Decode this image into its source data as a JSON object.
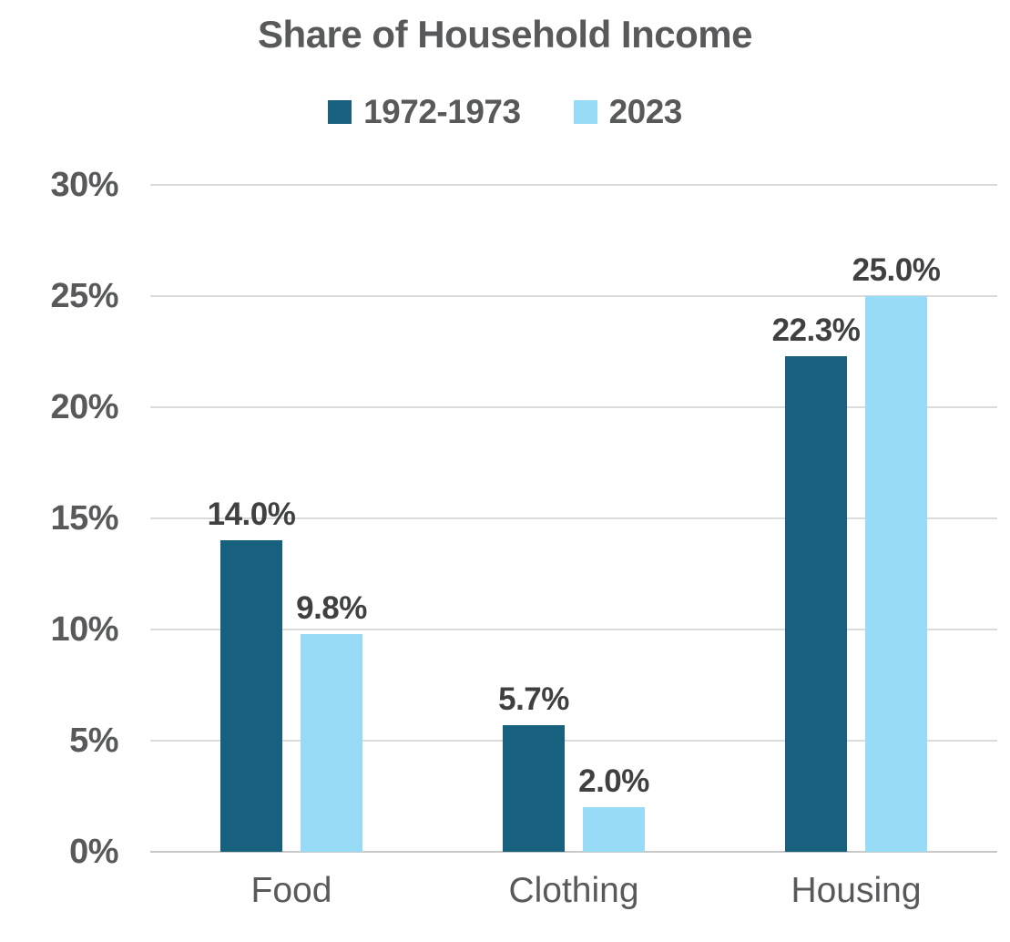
{
  "chart_data": {
    "type": "bar",
    "title": "Share of Household Income",
    "categories": [
      "Food",
      "Clothing",
      "Housing"
    ],
    "series": [
      {
        "name": "1972-1973",
        "color": "#17617f",
        "values": [
          14.0,
          5.7,
          22.3
        ],
        "value_labels": [
          "14.0%",
          "5.7%",
          "22.3%"
        ]
      },
      {
        "name": "2023",
        "color": "#97dbf6",
        "values": [
          9.8,
          2.0,
          25.0
        ],
        "value_labels": [
          "9.8%",
          "2.0%",
          "25.0%"
        ]
      }
    ],
    "ylim": [
      0,
      30
    ],
    "ytick_step": 5,
    "yticks": [
      "0%",
      "5%",
      "10%",
      "15%",
      "20%",
      "25%",
      "30%"
    ],
    "grid": true,
    "legend_position": "top"
  },
  "colors": {
    "title_text": "#58595b",
    "axis_text": "#58595b",
    "value_label_text": "#3f4041",
    "gridline": "#dbdbdb",
    "baseline": "#c8c8c8",
    "background": "#ffffff",
    "series_dark": "#17617f",
    "series_light": "#97dbf6"
  }
}
